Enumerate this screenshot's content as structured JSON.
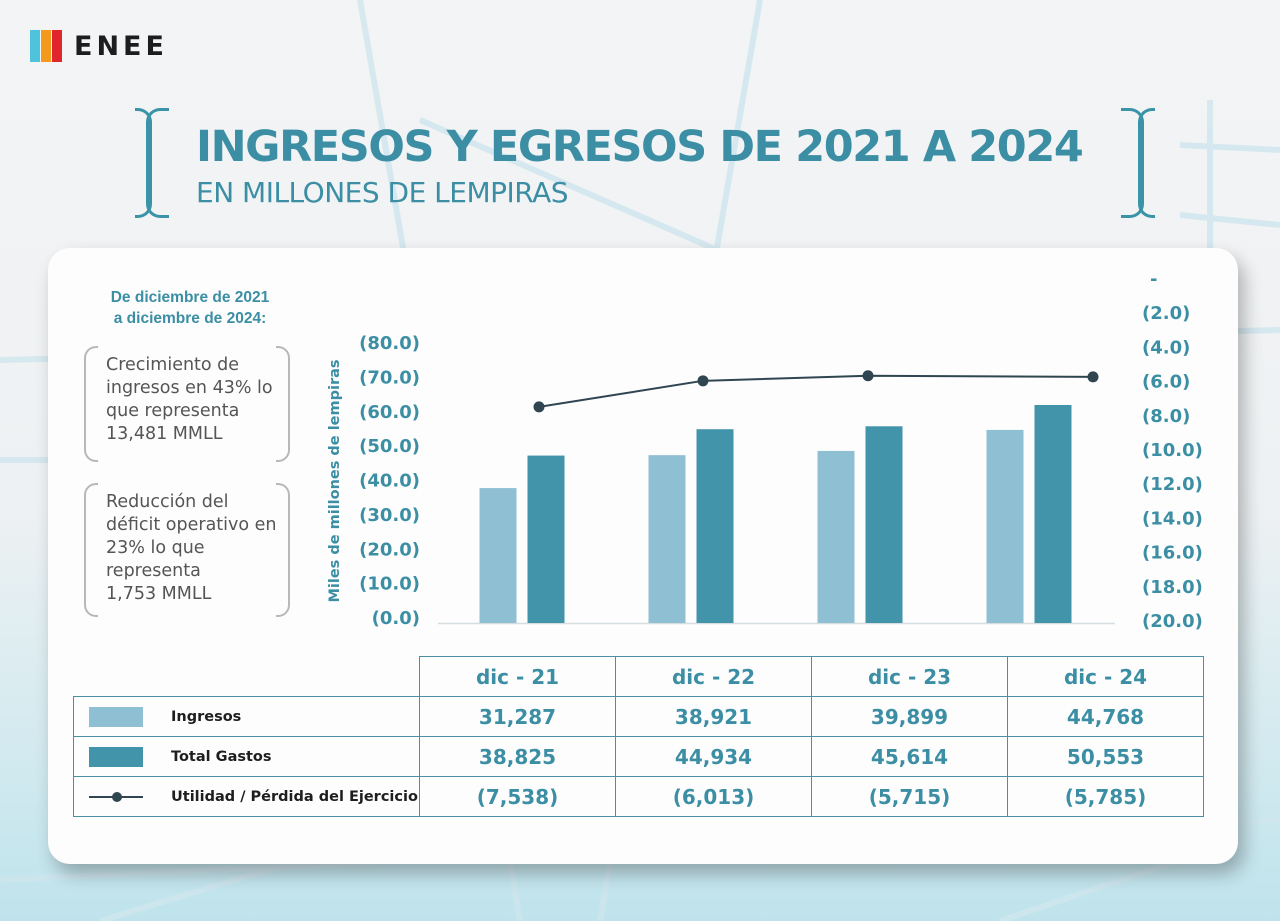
{
  "brand": {
    "name": "ENEE",
    "logo_colors": [
      "#4fc3dc",
      "#f39a1e",
      "#e0262c"
    ]
  },
  "title": {
    "main": "INGRESOS Y EGRESOS DE 2021 A 2024",
    "sub": "EN MILLONES DE LEMPIRAS"
  },
  "summary": {
    "heading_line1": "De diciembre de 2021",
    "heading_line2": "a diciembre de 2024:",
    "box1_lines": [
      "Crecimiento de",
      "ingresos en 43% lo",
      "que representa",
      "13,481 MMLL"
    ],
    "box2_lines": [
      "Reducción del",
      "déficit operativo en",
      "23% lo que",
      "representa",
      "1,753 MMLL"
    ]
  },
  "colors": {
    "accent": "#3b8ea3",
    "ingresos": "#8fbfd3",
    "gastos": "#4294ab",
    "line": "#2f4550"
  },
  "chart_data": {
    "type": "bar",
    "title": "INGRESOS Y EGRESOS DE 2021 A 2024",
    "subtitle": "EN MILLONES DE LEMPIRAS",
    "categories": [
      "dic - 21",
      "dic - 22",
      "dic - 23",
      "dic - 24"
    ],
    "ylabel": "Miles de millones de lempiras",
    "ylim": [
      0,
      80
    ],
    "y_ticks": [
      "(0.0)",
      "(10.0)",
      "(20.0)",
      "(30.0)",
      "(40.0)",
      "(50.0)",
      "(60.0)",
      "(70.0)",
      "(80.0)"
    ],
    "y2lim": [
      0,
      -20
    ],
    "y2_ticks": [
      "-",
      "(2.0)",
      "(4.0)",
      "(6.0)",
      "(8.0)",
      "(10.0)",
      "(12.0)",
      "(14.0)",
      "(16.0)",
      "(18.0)",
      "(20.0)"
    ],
    "grid": false,
    "series": [
      {
        "name": "Ingresos",
        "type": "bar",
        "axis": "left",
        "values": [
          31.287,
          38.921,
          39.899,
          44.768
        ],
        "labels": [
          "31,287",
          "38,921",
          "39,899",
          "44,768"
        ]
      },
      {
        "name": "Total Gastos",
        "type": "bar",
        "axis": "left",
        "values": [
          38.825,
          44.934,
          45.614,
          50.553
        ],
        "labels": [
          "38,825",
          "44,934",
          "45,614",
          "50,553"
        ]
      },
      {
        "name": "Utilidad / Pérdida del Ejercicio",
        "type": "line",
        "axis": "right",
        "values": [
          -7.538,
          -6.013,
          -5.715,
          -5.785
        ],
        "labels": [
          "(7,538)",
          "(6,013)",
          "(5,715)",
          "(5,785)"
        ]
      }
    ],
    "legend": "bottom-table"
  }
}
